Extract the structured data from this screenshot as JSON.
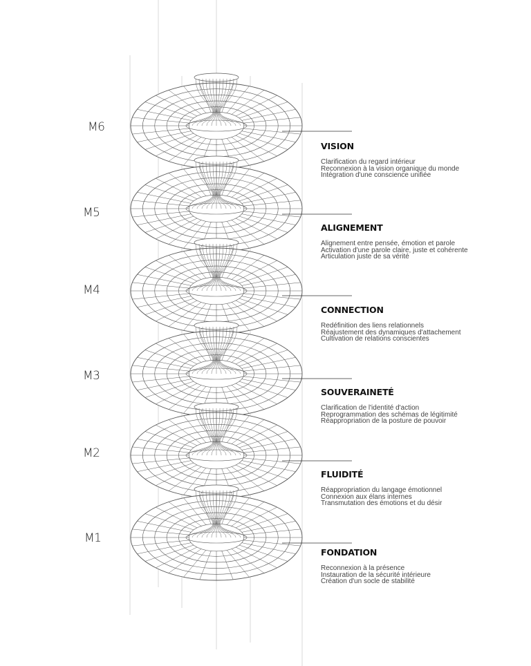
{
  "levels": [
    {
      "code": "M6",
      "title": "VISION",
      "lines": [
        "Clarification du regard intérieur",
        "Reconnexion à la vision organique du monde",
        "Intégration d'une conscience unifiée"
      ]
    },
    {
      "code": "M5",
      "title": "ALIGNEMENT",
      "lines": [
        "Alignement entre pensée, émotion et parole",
        "Activation d'une parole claire, juste et cohérente",
        "Articulation juste de sa vérité"
      ]
    },
    {
      "code": "M4",
      "title": "CONNECTION",
      "lines": [
        "Redéfinition des liens relationnels",
        "Réajustement des dynamiques d'attachement",
        "Cultivation de relations conscientes"
      ]
    },
    {
      "code": "M3",
      "title": "SOUVERAINETÉ",
      "lines": [
        "Clarification de l'identité d'action",
        "Reprogrammation des schémas de légitimité",
        "Réappropriation de la posture de pouvoir"
      ]
    },
    {
      "code": "M2",
      "title": "FLUIDITÉ",
      "lines": [
        "Réappropriation du langage émotionnel",
        "Connexion aux élans internes",
        "Transmutation des émotions et du désir"
      ]
    },
    {
      "code": "M1",
      "title": "FONDATION",
      "lines": [
        "Reconnexion à la présence",
        "Instauration de la sécurité intérieure",
        "Création d'un socle de stabilité"
      ]
    }
  ],
  "colors": {
    "line": "#555555",
    "guide": "#d0d0d0",
    "text": "#444444",
    "title": "#111111"
  }
}
